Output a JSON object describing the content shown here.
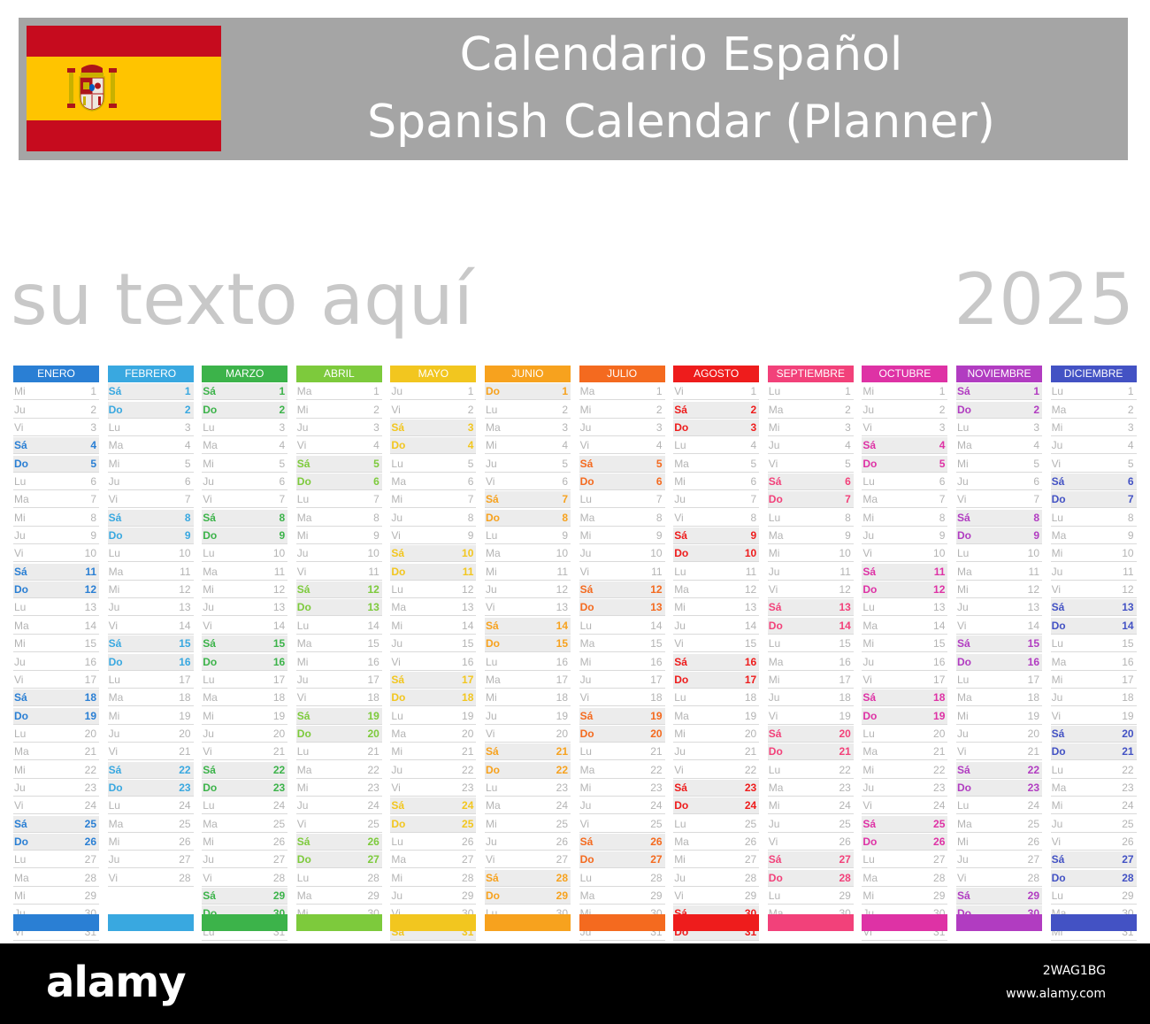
{
  "header": {
    "title_es": "Calendario Español",
    "title_en": "Spanish Calendar (Planner)",
    "band_color": "#a5a5a5",
    "flag_icon": "spain-flag-icon"
  },
  "slogan": "su texto aquí",
  "year": "2025",
  "weekday_cycle": [
    "Lu",
    "Ma",
    "Mi",
    "Ju",
    "Vi",
    "Sá",
    "Do"
  ],
  "months": [
    {
      "name": "ENERO",
      "color": "#2a7fd4",
      "first_weekday": 2,
      "days": 31
    },
    {
      "name": "FEBRERO",
      "color": "#39a8e0",
      "first_weekday": 5,
      "days": 28
    },
    {
      "name": "MARZO",
      "color": "#3cb34a",
      "first_weekday": 5,
      "days": 31
    },
    {
      "name": "ABRIL",
      "color": "#7dca3c",
      "first_weekday": 1,
      "days": 30
    },
    {
      "name": "MAYO",
      "color": "#f2c61f",
      "first_weekday": 3,
      "days": 31
    },
    {
      "name": "JUNIO",
      "color": "#f7a21e",
      "first_weekday": 6,
      "days": 30
    },
    {
      "name": "JULIO",
      "color": "#f46a1f",
      "first_weekday": 1,
      "days": 31
    },
    {
      "name": "AGOSTO",
      "color": "#ee1c1c",
      "first_weekday": 4,
      "days": 31
    },
    {
      "name": "SEPTIEMBRE",
      "color": "#f2417a",
      "first_weekday": 0,
      "days": 30
    },
    {
      "name": "OCTUBRE",
      "color": "#de32a5",
      "first_weekday": 2,
      "days": 31
    },
    {
      "name": "NOVIEMBRE",
      "color": "#b13cc1",
      "first_weekday": 5,
      "days": 30
    },
    {
      "name": "DICIEMBRE",
      "color": "#4352c4",
      "first_weekday": 0,
      "days": 31
    }
  ],
  "footer": {
    "logo": "alamy",
    "image_id": "2WAG1BG",
    "url": "www.alamy.com"
  }
}
